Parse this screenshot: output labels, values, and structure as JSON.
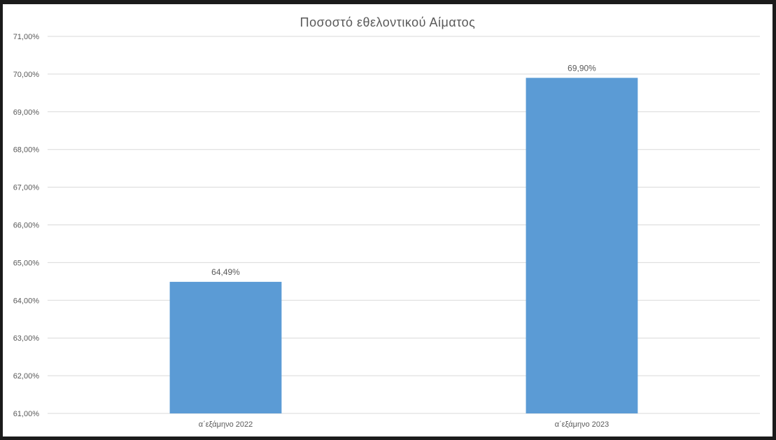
{
  "chart_data": {
    "type": "bar",
    "title": "Ποσοστό εθελοντικού Αίματος",
    "xlabel": "",
    "ylabel": "",
    "categories": [
      "α΄εξάμηνο 2022",
      "α΄εξάμηνο 2023"
    ],
    "values": [
      64.49,
      69.9
    ],
    "data_labels": [
      "64,49%",
      "69,90%"
    ],
    "ylim": [
      61,
      71
    ],
    "y_ticks": [
      61,
      62,
      63,
      64,
      65,
      66,
      67,
      68,
      69,
      70,
      71
    ],
    "y_tick_labels": [
      "61,00%",
      "62,00%",
      "63,00%",
      "64,00%",
      "65,00%",
      "66,00%",
      "67,00%",
      "68,00%",
      "69,00%",
      "70,00%",
      "71,00%"
    ],
    "grid": true,
    "legend": "none",
    "colors": {
      "bar": "#5b9bd5",
      "grid": "#d9d9d9",
      "text": "#595959",
      "background": "#ffffff",
      "frame": "#1b1b1b"
    }
  }
}
